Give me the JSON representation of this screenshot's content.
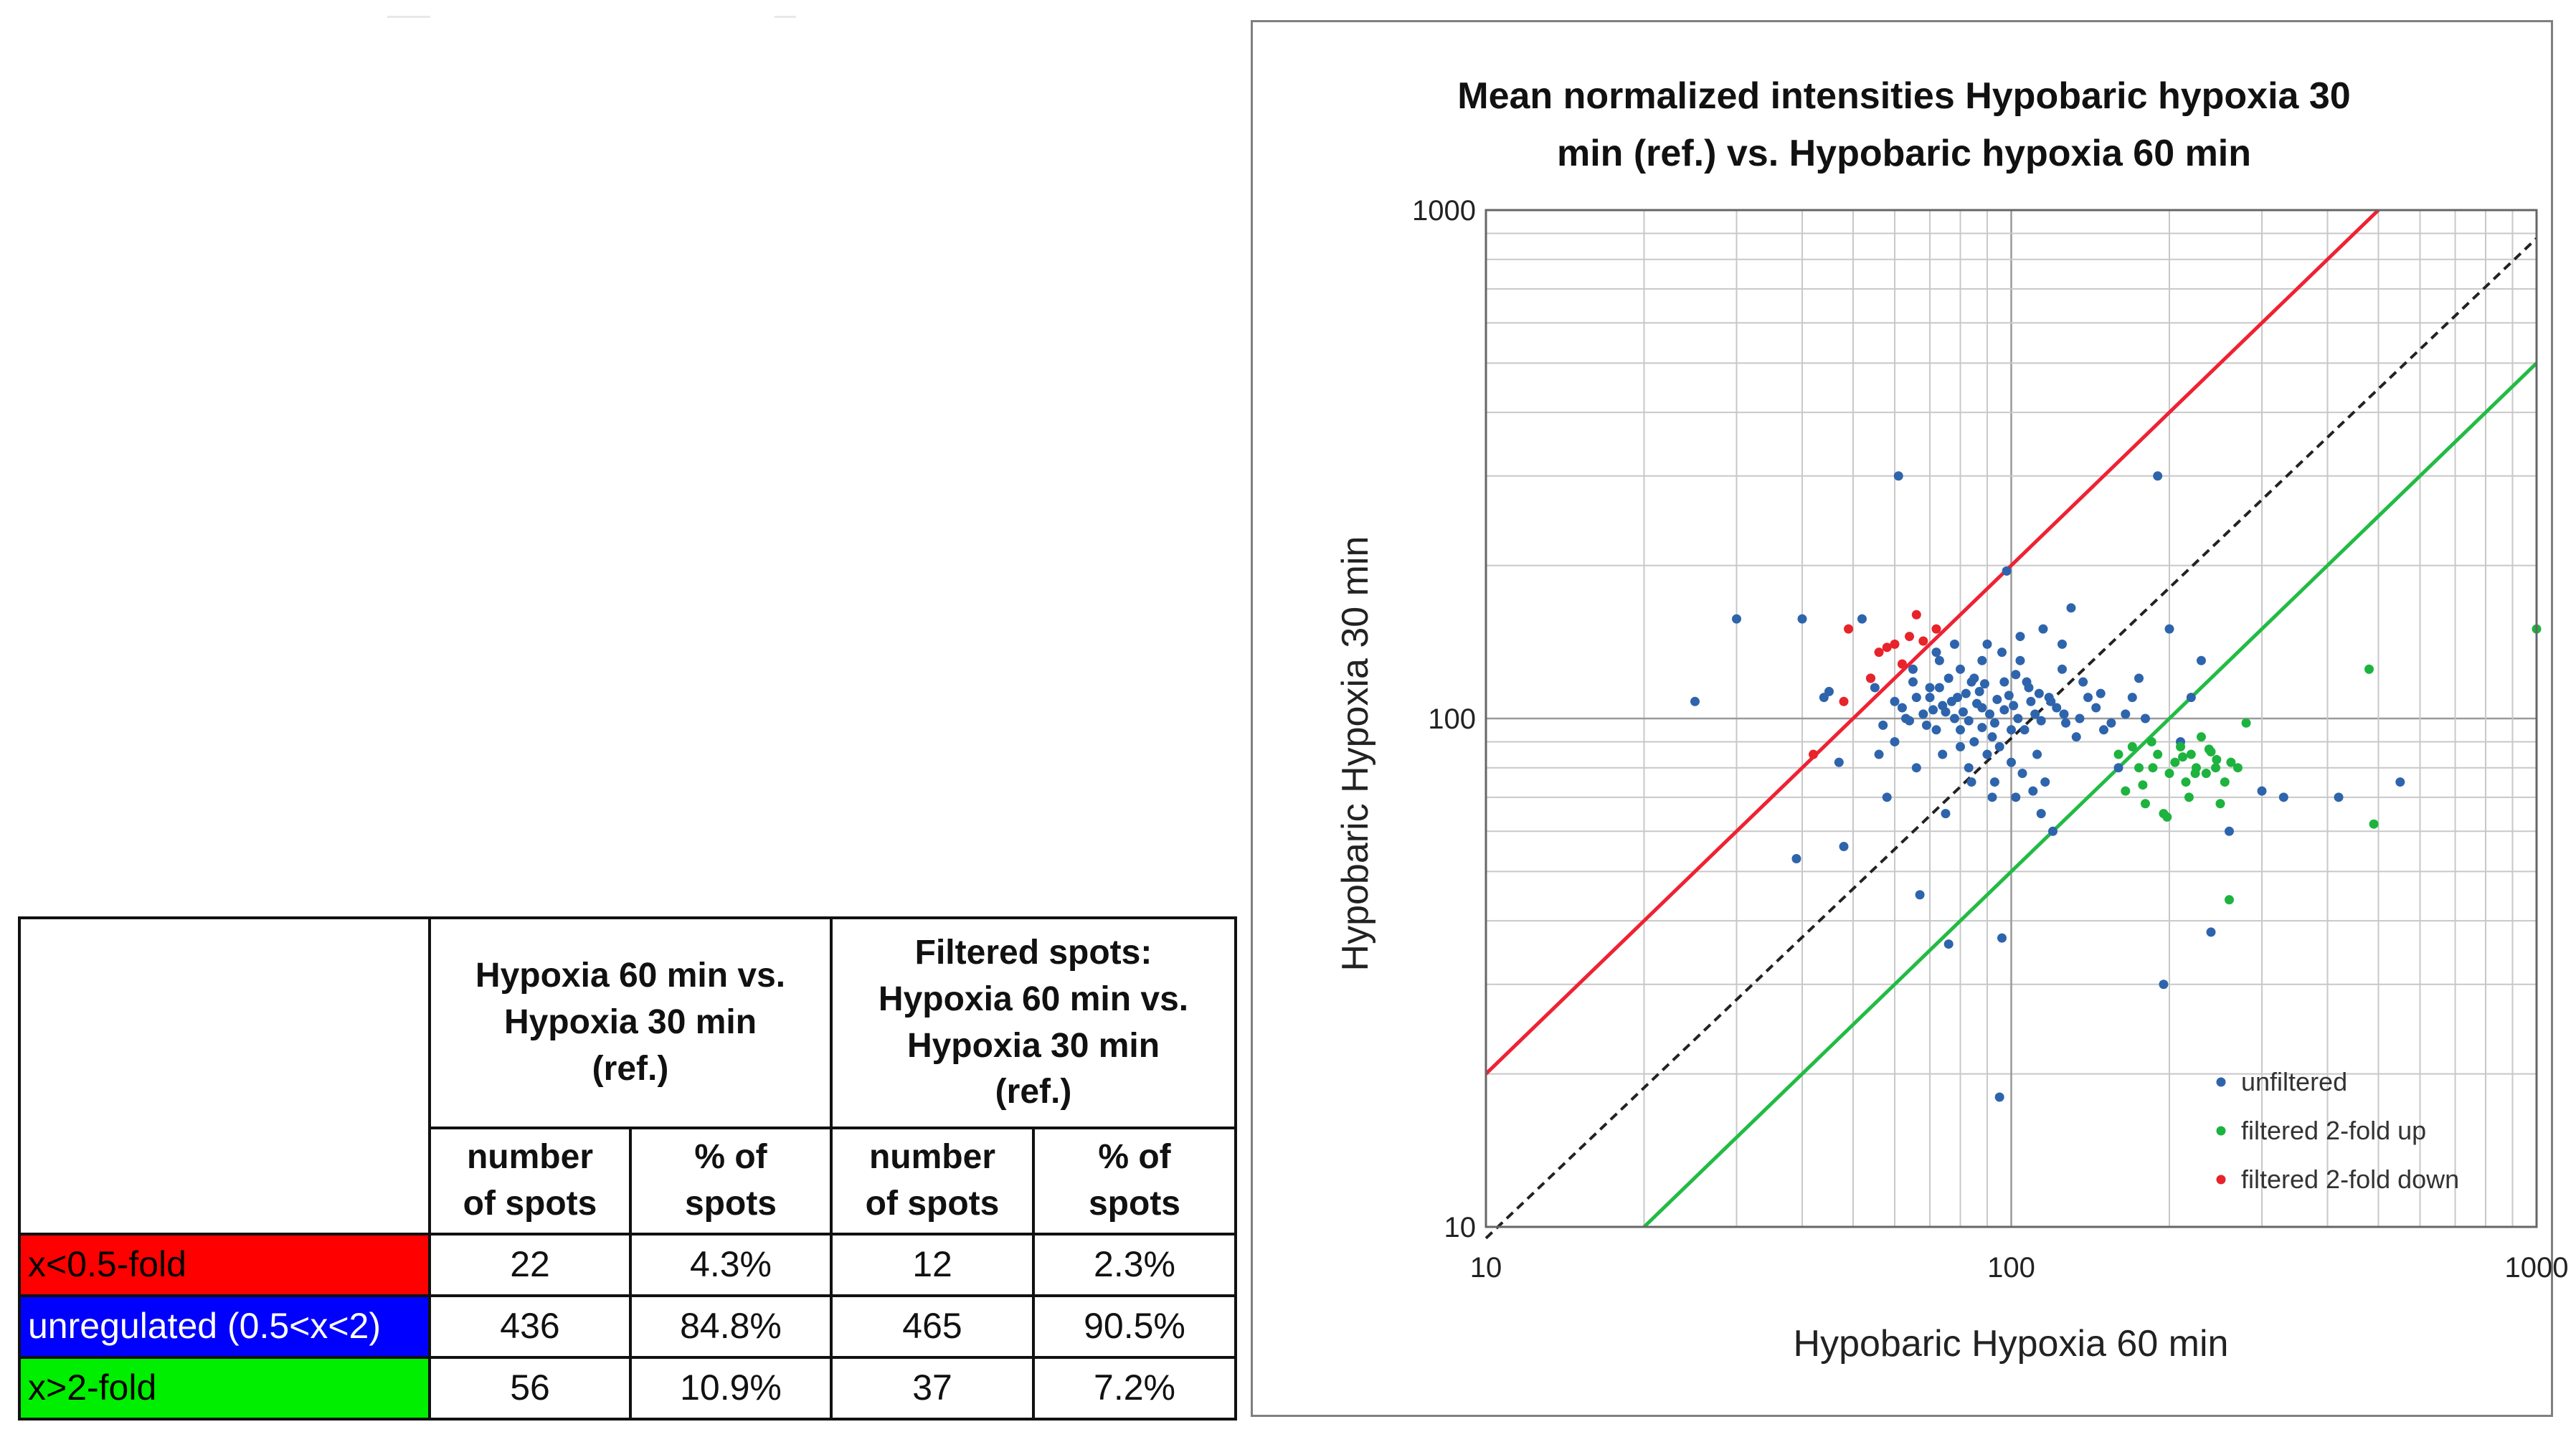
{
  "table": {
    "group1_header": [
      "Hypoxia 60 min vs.",
      "Hypoxia 30 min",
      "(ref.)"
    ],
    "group2_header": [
      "Filtered spots:",
      "Hypoxia 60 min vs.",
      "Hypoxia 30 min",
      "(ref.)"
    ],
    "sub_headers": [
      [
        "number",
        "of spots"
      ],
      [
        "% of",
        "spots"
      ],
      [
        "number",
        "of spots"
      ],
      [
        "% of",
        "spots"
      ]
    ],
    "rows": [
      {
        "label": "x<0.5-fold",
        "color": "#ff0000",
        "values": [
          "22",
          "4.3%",
          "12",
          "2.3%"
        ]
      },
      {
        "label": "unregulated (0.5<x<2)",
        "color": "#0000ff",
        "values": [
          "436",
          "84.8%",
          "465",
          "90.5%"
        ]
      },
      {
        "label": "x>2-fold",
        "color": "#00ee00",
        "values": [
          "56",
          "10.9%",
          "37",
          "7.2%"
        ]
      }
    ]
  },
  "chart_data": {
    "type": "scatter",
    "title_lines": [
      "Mean normalized intensities Hypobaric hypoxia 30",
      "min (ref.)  vs. Hypobaric hypoxia 60 min"
    ],
    "xlabel": "Hypobaric Hypoxia 60 min",
    "ylabel": "Hypobaric Hypoxia  30 min",
    "xscale": "log",
    "yscale": "log",
    "xlim": [
      10,
      1000
    ],
    "ylim": [
      10,
      1000
    ],
    "xticks": [
      10,
      100,
      1000
    ],
    "yticks": [
      10,
      100,
      1000
    ],
    "xtick_labels": [
      "10",
      "100",
      "1000"
    ],
    "ytick_labels": [
      "10",
      "100",
      "1000"
    ],
    "grid": true,
    "legend_position": "bottom-right",
    "colors": {
      "unfiltered": "#2e64ac",
      "up": "#1db33e",
      "down": "#e8232a",
      "line_up": "#22bb44",
      "line_down": "#ee2233",
      "diagonal": "#222222"
    },
    "reference_lines": [
      {
        "name": "2-fold down boundary",
        "color": "#ee2233",
        "style": "solid",
        "points": [
          [
            10,
            20
          ],
          [
            500,
            1000
          ]
        ]
      },
      {
        "name": "identity",
        "color": "#222222",
        "style": "dashed",
        "points": [
          [
            10,
            9.5
          ],
          [
            1000,
            880
          ]
        ]
      },
      {
        "name": "2-fold up boundary",
        "color": "#22bb44",
        "style": "solid",
        "points": [
          [
            20,
            10
          ],
          [
            1000,
            500
          ]
        ]
      }
    ],
    "series": [
      {
        "name": "unfiltered",
        "color": "#2e64ac",
        "points": [
          [
            25,
            108
          ],
          [
            30,
            157
          ],
          [
            40,
            157
          ],
          [
            39,
            53
          ],
          [
            44,
            110
          ],
          [
            45,
            113
          ],
          [
            47,
            82
          ],
          [
            48,
            56
          ],
          [
            52,
            157
          ],
          [
            54,
            120
          ],
          [
            55,
            115
          ],
          [
            57,
            97
          ],
          [
            58,
            70
          ],
          [
            60,
            108
          ],
          [
            61,
            300
          ],
          [
            63,
            100
          ],
          [
            65,
            118
          ],
          [
            67,
            45
          ],
          [
            70,
            110
          ],
          [
            72,
            95
          ],
          [
            73,
            130
          ],
          [
            75,
            65
          ],
          [
            76,
            36
          ],
          [
            78,
            100
          ],
          [
            80,
            88
          ],
          [
            82,
            112
          ],
          [
            84,
            75
          ],
          [
            85,
            120
          ],
          [
            88,
            105
          ],
          [
            90,
            140
          ],
          [
            92,
            70
          ],
          [
            95,
            18
          ],
          [
            96,
            37
          ],
          [
            98,
            195
          ],
          [
            100,
            95
          ],
          [
            104,
            130
          ],
          [
            108,
            115
          ],
          [
            112,
            85
          ],
          [
            116,
            75
          ],
          [
            120,
            60
          ],
          [
            125,
            140
          ],
          [
            130,
            165
          ],
          [
            140,
            110
          ],
          [
            150,
            95
          ],
          [
            160,
            80
          ],
          [
            175,
            120
          ],
          [
            190,
            300
          ],
          [
            195,
            30
          ],
          [
            200,
            150
          ],
          [
            220,
            110
          ],
          [
            240,
            38
          ],
          [
            260,
            60
          ],
          [
            300,
            72
          ],
          [
            330,
            70
          ],
          [
            420,
            70
          ],
          [
            550,
            75
          ],
          [
            68,
            102
          ],
          [
            71,
            104
          ],
          [
            74,
            106
          ],
          [
            77,
            108
          ],
          [
            79,
            110
          ],
          [
            81,
            103
          ],
          [
            83,
            99
          ],
          [
            86,
            107
          ],
          [
            87,
            113
          ],
          [
            89,
            117
          ],
          [
            91,
            102
          ],
          [
            93,
            98
          ],
          [
            94,
            109
          ],
          [
            97,
            104
          ],
          [
            99,
            111
          ],
          [
            101,
            106
          ],
          [
            103,
            100
          ],
          [
            106,
            95
          ],
          [
            109,
            108
          ],
          [
            111,
            102
          ],
          [
            114,
            99
          ],
          [
            118,
            110
          ],
          [
            122,
            105
          ],
          [
            127,
            98
          ],
          [
            133,
            92
          ],
          [
            62,
            105
          ],
          [
            64,
            99
          ],
          [
            66,
            110
          ],
          [
            69,
            97
          ],
          [
            73,
            115
          ],
          [
            76,
            120
          ],
          [
            80,
            125
          ],
          [
            84,
            118
          ],
          [
            88,
            96
          ],
          [
            92,
            92
          ],
          [
            97,
            118
          ],
          [
            102,
            122
          ],
          [
            107,
            118
          ],
          [
            113,
            112
          ],
          [
            119,
            108
          ],
          [
            126,
            102
          ],
          [
            135,
            100
          ],
          [
            145,
            105
          ],
          [
            155,
            98
          ],
          [
            165,
            102
          ],
          [
            85,
            90
          ],
          [
            90,
            85
          ],
          [
            95,
            88
          ],
          [
            100,
            82
          ],
          [
            105,
            78
          ],
          [
            110,
            72
          ],
          [
            80,
            95
          ],
          [
            75,
            103
          ],
          [
            70,
            115
          ],
          [
            65,
            125
          ],
          [
            72,
            135
          ],
          [
            78,
            140
          ],
          [
            88,
            130
          ],
          [
            96,
            135
          ],
          [
            104,
            145
          ],
          [
            115,
            150
          ],
          [
            125,
            125
          ],
          [
            137,
            118
          ],
          [
            148,
            112
          ],
          [
            170,
            110
          ],
          [
            180,
            100
          ],
          [
            210,
            90
          ],
          [
            230,
            130
          ],
          [
            60,
            90
          ],
          [
            56,
            85
          ],
          [
            66,
            80
          ],
          [
            74,
            85
          ],
          [
            83,
            80
          ],
          [
            93,
            75
          ],
          [
            102,
            70
          ],
          [
            114,
            65
          ]
        ]
      },
      {
        "name": "filtered 2-fold up",
        "color": "#1db33e",
        "points": [
          [
            160,
            85
          ],
          [
            165,
            72
          ],
          [
            170,
            88
          ],
          [
            175,
            80
          ],
          [
            180,
            68
          ],
          [
            185,
            90
          ],
          [
            190,
            85
          ],
          [
            195,
            65
          ],
          [
            200,
            78
          ],
          [
            205,
            82
          ],
          [
            210,
            88
          ],
          [
            215,
            75
          ],
          [
            220,
            85
          ],
          [
            225,
            80
          ],
          [
            230,
            92
          ],
          [
            235,
            78
          ],
          [
            240,
            86
          ],
          [
            245,
            80
          ],
          [
            250,
            68
          ],
          [
            255,
            75
          ],
          [
            260,
            44
          ],
          [
            270,
            80
          ],
          [
            280,
            98
          ],
          [
            480,
            125
          ],
          [
            490,
            62
          ],
          [
            1000,
            150
          ],
          [
            198,
            64
          ],
          [
            212,
            84
          ],
          [
            238,
            87
          ],
          [
            246,
            83
          ],
          [
            224,
            78
          ],
          [
            218,
            70
          ],
          [
            178,
            74
          ],
          [
            186,
            80
          ],
          [
            262,
            82
          ]
        ]
      },
      {
        "name": "filtered 2-fold down",
        "color": "#e8232a",
        "points": [
          [
            42,
            85
          ],
          [
            48,
            108
          ],
          [
            49,
            150
          ],
          [
            54,
            120
          ],
          [
            56,
            135
          ],
          [
            58,
            138
          ],
          [
            60,
            140
          ],
          [
            62,
            128
          ],
          [
            64,
            145
          ],
          [
            66,
            160
          ],
          [
            68,
            142
          ],
          [
            72,
            150
          ]
        ]
      }
    ]
  }
}
